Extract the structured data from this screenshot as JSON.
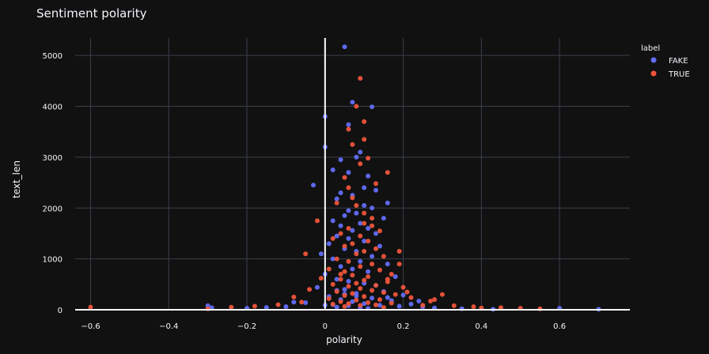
{
  "chart_data": {
    "type": "scatter",
    "title": "Sentiment polarity",
    "xlabel": "polarity",
    "ylabel": "text_len",
    "xlim": [
      -0.68,
      0.78
    ],
    "ylim": [
      0,
      5500
    ],
    "x_ticks": [
      -0.6,
      -0.4,
      -0.2,
      0,
      0.2,
      0.4,
      0.6
    ],
    "x_tick_labels": [
      "−0.6",
      "−0.4",
      "−0.2",
      "0",
      "0.2",
      "0.4",
      "0.6"
    ],
    "y_ticks": [
      0,
      1000,
      2000,
      3000,
      4000,
      5000
    ],
    "y_tick_labels": [
      "0",
      "1000",
      "2000",
      "3000",
      "4000",
      "5000"
    ],
    "grid": true,
    "legend_position": "top-right",
    "legend_title": "label",
    "series": [
      {
        "name": "FAKE",
        "color": "#636efa",
        "points": [
          [
            0.05,
            5170
          ],
          [
            0.07,
            4080
          ],
          [
            0.12,
            3990
          ],
          [
            0.0,
            3800
          ],
          [
            0.06,
            3640
          ],
          [
            0.0,
            3200
          ],
          [
            0.09,
            3100
          ],
          [
            0.08,
            3000
          ],
          [
            0.04,
            2950
          ],
          [
            0.02,
            2750
          ],
          [
            0.06,
            2700
          ],
          [
            0.11,
            2630
          ],
          [
            -0.03,
            2450
          ],
          [
            0.1,
            2400
          ],
          [
            0.13,
            2350
          ],
          [
            0.04,
            2300
          ],
          [
            0.07,
            2250
          ],
          [
            0.03,
            2180
          ],
          [
            0.16,
            2100
          ],
          [
            0.1,
            2050
          ],
          [
            0.12,
            2000
          ],
          [
            0.06,
            1950
          ],
          [
            0.08,
            1900
          ],
          [
            0.05,
            1850
          ],
          [
            0.15,
            1800
          ],
          [
            0.02,
            1750
          ],
          [
            0.09,
            1700
          ],
          [
            0.04,
            1650
          ],
          [
            0.11,
            1600
          ],
          [
            0.07,
            1560
          ],
          [
            0.13,
            1500
          ],
          [
            0.03,
            1450
          ],
          [
            0.06,
            1400
          ],
          [
            0.1,
            1350
          ],
          [
            0.01,
            1300
          ],
          [
            0.14,
            1250
          ],
          [
            0.05,
            1200
          ],
          [
            0.08,
            1150
          ],
          [
            -0.01,
            1100
          ],
          [
            0.12,
            1050
          ],
          [
            0.02,
            1000
          ],
          [
            0.09,
            950
          ],
          [
            0.16,
            900
          ],
          [
            0.04,
            850
          ],
          [
            0.07,
            800
          ],
          [
            0.11,
            750
          ],
          [
            0.0,
            700
          ],
          [
            0.18,
            650
          ],
          [
            0.03,
            600
          ],
          [
            0.06,
            560
          ],
          [
            0.1,
            520
          ],
          [
            0.13,
            480
          ],
          [
            -0.02,
            440
          ],
          [
            0.05,
            400
          ],
          [
            0.15,
            360
          ],
          [
            0.08,
            320
          ],
          [
            0.2,
            290
          ],
          [
            0.01,
            260
          ],
          [
            0.12,
            230
          ],
          [
            0.04,
            200
          ],
          [
            0.17,
            180
          ],
          [
            0.07,
            160
          ],
          [
            -0.05,
            140
          ],
          [
            0.1,
            120
          ],
          [
            0.22,
            110
          ],
          [
            0.02,
            100
          ],
          [
            0.14,
            90
          ],
          [
            0.06,
            80
          ],
          [
            0.19,
            70
          ],
          [
            -0.1,
            60
          ],
          [
            0.25,
            55
          ],
          [
            0.03,
            50
          ],
          [
            -0.15,
            45
          ],
          [
            0.09,
            40
          ],
          [
            0.28,
            35
          ],
          [
            -0.2,
            30
          ],
          [
            0.11,
            28
          ],
          [
            -0.3,
            80
          ],
          [
            -0.29,
            40
          ],
          [
            0.6,
            30
          ],
          [
            0.7,
            10
          ],
          [
            0.43,
            10
          ],
          [
            0.35,
            20
          ],
          [
            0.0,
            90
          ],
          [
            0.05,
            310
          ],
          [
            0.08,
            270
          ],
          [
            -0.08,
            150
          ],
          [
            0.16,
            240
          ],
          [
            0.24,
            170
          ],
          [
            0.03,
            380
          ]
        ]
      },
      {
        "name": "TRUE",
        "color": "#ef553b",
        "points": [
          [
            0.09,
            4550
          ],
          [
            0.08,
            4000
          ],
          [
            0.1,
            3700
          ],
          [
            0.06,
            3550
          ],
          [
            0.1,
            3350
          ],
          [
            0.07,
            3250
          ],
          [
            0.11,
            2980
          ],
          [
            0.09,
            2870
          ],
          [
            0.16,
            2700
          ],
          [
            0.05,
            2600
          ],
          [
            0.13,
            2480
          ],
          [
            0.03,
            2100
          ],
          [
            0.08,
            2050
          ],
          [
            -0.02,
            1750
          ],
          [
            0.1,
            1700
          ],
          [
            0.12,
            1650
          ],
          [
            0.06,
            1600
          ],
          [
            0.14,
            1550
          ],
          [
            0.04,
            1500
          ],
          [
            0.09,
            1450
          ],
          [
            0.19,
            1150
          ],
          [
            0.02,
            1400
          ],
          [
            0.11,
            1350
          ],
          [
            0.07,
            1300
          ],
          [
            0.05,
            1250
          ],
          [
            0.13,
            1200
          ],
          [
            -0.05,
            1100
          ],
          [
            0.1,
            1150
          ],
          [
            0.08,
            1100
          ],
          [
            0.15,
            1050
          ],
          [
            0.03,
            1000
          ],
          [
            0.06,
            950
          ],
          [
            0.12,
            900
          ],
          [
            0.09,
            850
          ],
          [
            0.01,
            800
          ],
          [
            0.14,
            780
          ],
          [
            0.05,
            750
          ],
          [
            0.17,
            700
          ],
          [
            0.07,
            680
          ],
          [
            0.11,
            650
          ],
          [
            -0.01,
            620
          ],
          [
            0.04,
            600
          ],
          [
            0.1,
            580
          ],
          [
            0.16,
            550
          ],
          [
            0.08,
            520
          ],
          [
            0.02,
            500
          ],
          [
            0.13,
            480
          ],
          [
            0.06,
            460
          ],
          [
            0.2,
            440
          ],
          [
            0.09,
            420
          ],
          [
            -0.04,
            400
          ],
          [
            0.12,
            380
          ],
          [
            0.03,
            360
          ],
          [
            0.15,
            340
          ],
          [
            0.07,
            320
          ],
          [
            0.18,
            300
          ],
          [
            0.05,
            280
          ],
          [
            0.1,
            260
          ],
          [
            0.22,
            240
          ],
          [
            0.01,
            220
          ],
          [
            0.14,
            200
          ],
          [
            0.08,
            190
          ],
          [
            0.27,
            170
          ],
          [
            0.04,
            160
          ],
          [
            -0.06,
            150
          ],
          [
            0.11,
            140
          ],
          [
            0.17,
            130
          ],
          [
            0.06,
            120
          ],
          [
            0.3,
            300
          ],
          [
            0.02,
            110
          ],
          [
            -0.12,
            100
          ],
          [
            0.13,
            95
          ],
          [
            0.25,
            90
          ],
          [
            0.09,
            85
          ],
          [
            0.33,
            80
          ],
          [
            -0.18,
            70
          ],
          [
            0.05,
            65
          ],
          [
            0.38,
            60
          ],
          [
            -0.24,
            50
          ],
          [
            0.15,
            45
          ],
          [
            0.45,
            40
          ],
          [
            0.5,
            30
          ],
          [
            0.55,
            20
          ],
          [
            -0.6,
            50
          ],
          [
            -0.3,
            20
          ],
          [
            0.4,
            35
          ],
          [
            0.21,
            350
          ],
          [
            0.28,
            200
          ],
          [
            -0.08,
            250
          ],
          [
            0.16,
            600
          ],
          [
            0.12,
            1800
          ],
          [
            0.07,
            2200
          ],
          [
            0.1,
            1900
          ],
          [
            0.04,
            700
          ],
          [
            0.19,
            900
          ],
          [
            0.06,
            2400
          ]
        ]
      }
    ]
  }
}
